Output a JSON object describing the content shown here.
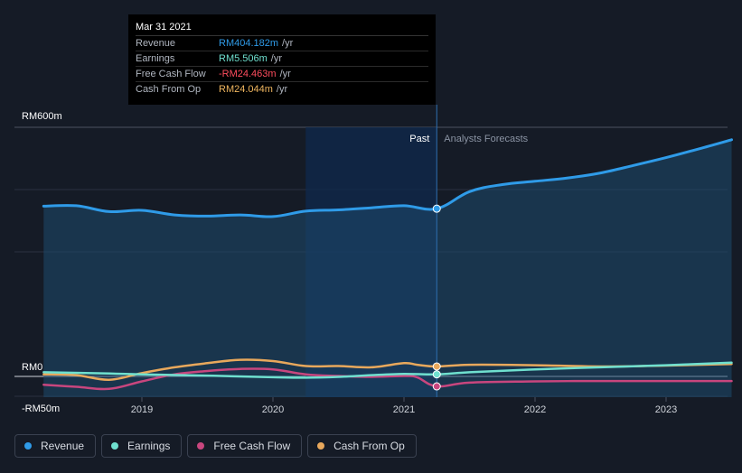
{
  "tooltip": {
    "date": "Mar 31 2021",
    "rows": [
      {
        "label": "Revenue",
        "value": "RM404.182m",
        "unit": "/yr",
        "color": "#2f9be8"
      },
      {
        "label": "Earnings",
        "value": "RM5.506m",
        "unit": "/yr",
        "color": "#6fe0cf"
      },
      {
        "label": "Free Cash Flow",
        "value": "-RM24.463m",
        "unit": "/yr",
        "color": "#ff4d5e"
      },
      {
        "label": "Cash From Op",
        "value": "RM24.044m",
        "unit": "/yr",
        "color": "#f0b65f"
      }
    ]
  },
  "legend": [
    {
      "label": "Revenue",
      "color": "#2f9be8"
    },
    {
      "label": "Earnings",
      "color": "#6fe0cf"
    },
    {
      "label": "Free Cash Flow",
      "color": "#c8467e"
    },
    {
      "label": "Cash From Op",
      "color": "#e8a85c"
    }
  ],
  "chart_data": {
    "type": "line",
    "ylim": [
      -50,
      600
    ],
    "y_tick_labels": [
      "RM600m",
      "RM0",
      "-RM50m"
    ],
    "x_tick_labels": [
      "2019",
      "2020",
      "2021",
      "2022",
      "2023"
    ],
    "past_label": "Past",
    "forecast_label": "Analysts Forecasts",
    "divider_x": 2021.25,
    "highlight_x": [
      2020.25,
      2021.25
    ],
    "grid": true,
    "legend_position": "bottom-left",
    "series": [
      {
        "name": "Revenue",
        "color": "#2f9be8",
        "x": [
          2018.25,
          2018.5,
          2018.75,
          2019.0,
          2019.25,
          2019.5,
          2019.75,
          2020.0,
          2020.25,
          2020.5,
          2020.75,
          2021.0,
          2021.25,
          2021.5,
          2021.75,
          2022.0,
          2022.25,
          2022.5,
          2022.75,
          2023.0,
          2023.25,
          2023.5
        ],
        "y": [
          410,
          411,
          397,
          400,
          389,
          386,
          389,
          385,
          398,
          401,
          406,
          411,
          404,
          445,
          462,
          470,
          478,
          490,
          508,
          527,
          548,
          570
        ]
      },
      {
        "name": "Earnings",
        "color": "#6fe0cf",
        "x": [
          2018.25,
          2018.75,
          2019.0,
          2019.5,
          2020.0,
          2020.25,
          2020.5,
          2020.75,
          2021.0,
          2021.25,
          2021.5,
          2022.0,
          2022.5,
          2023.0,
          2023.5
        ],
        "y": [
          10,
          7,
          5,
          2,
          -2,
          -3,
          -1,
          3,
          6,
          5,
          10,
          17,
          22,
          27,
          33
        ]
      },
      {
        "name": "Free Cash Flow",
        "color": "#c8467e",
        "x": [
          2018.25,
          2018.5,
          2018.75,
          2019.0,
          2019.25,
          2019.5,
          2019.75,
          2020.0,
          2020.25,
          2020.5,
          2020.75,
          2021.0,
          2021.1,
          2021.25,
          2021.5,
          2022.0,
          2022.5,
          2023.0,
          2023.5
        ],
        "y": [
          -20,
          -25,
          -30,
          -12,
          5,
          13,
          18,
          17,
          5,
          1,
          -1,
          1,
          -2,
          -24,
          -15,
          -12,
          -11,
          -11,
          -11
        ]
      },
      {
        "name": "Cash From Op",
        "color": "#e8a85c",
        "x": [
          2018.25,
          2018.5,
          2018.75,
          2019.0,
          2019.25,
          2019.5,
          2019.75,
          2020.0,
          2020.25,
          2020.5,
          2020.75,
          2021.0,
          2021.1,
          2021.25,
          2021.5,
          2022.0,
          2022.5,
          2023.0,
          2023.5
        ],
        "y": [
          5,
          3,
          -8,
          8,
          22,
          32,
          40,
          37,
          25,
          25,
          22,
          32,
          28,
          24,
          28,
          27,
          24,
          26,
          30
        ]
      }
    ]
  }
}
